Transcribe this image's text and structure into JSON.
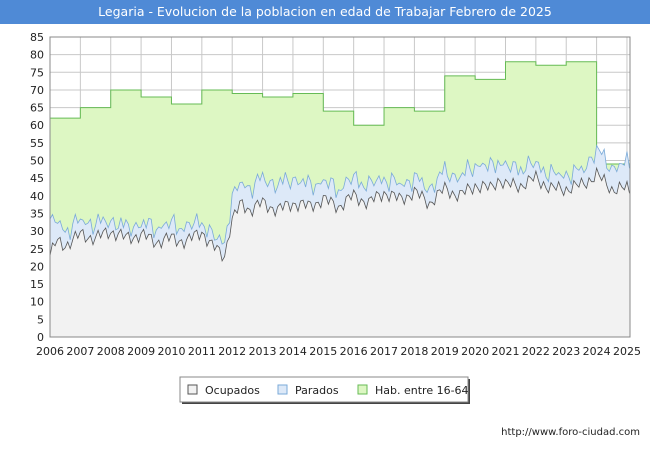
{
  "chart_data": {
    "type": "area",
    "title": "Legaria - Evolucion de la poblacion en edad de Trabajar Febrero de 2025",
    "xlabel": "",
    "ylabel": "",
    "ylim": [
      0,
      85
    ],
    "xlim": [
      2006,
      2025.1
    ],
    "x_ticks": [
      "2006",
      "2007",
      "2008",
      "2009",
      "2010",
      "2011",
      "2012",
      "2013",
      "2014",
      "2015",
      "2016",
      "2017",
      "2018",
      "2019",
      "2020",
      "2021",
      "2022",
      "2023",
      "2024",
      "2025"
    ],
    "y_ticks": [
      "0",
      "5",
      "10",
      "15",
      "20",
      "25",
      "30",
      "35",
      "40",
      "45",
      "50",
      "55",
      "60",
      "65",
      "70",
      "75",
      "80",
      "85"
    ],
    "legend": [
      "Ocupados",
      "Parados",
      "Hab. entre 16-64"
    ],
    "colors": {
      "ocupados_fill": "#f2f2f2",
      "ocupados_line": "#555555",
      "parados_fill": "#dde9f8",
      "parados_line": "#7aaad8",
      "hab_fill": "#ddf7c3",
      "hab_line": "#66bb55",
      "grid": "#c8c8c8",
      "title_bg": "#4f8ad6"
    },
    "series": [
      {
        "name": "Hab. entre 16-64",
        "x": [
          2006,
          2007,
          2008,
          2009,
          2010,
          2011,
          2012,
          2013,
          2014,
          2015,
          2016,
          2017,
          2018,
          2019,
          2020,
          2021,
          2022,
          2023,
          2024
        ],
        "values": [
          62,
          65,
          70,
          68,
          66,
          70,
          69,
          68,
          69,
          64,
          60,
          65,
          64,
          74,
          73,
          78,
          77,
          78,
          49
        ]
      },
      {
        "name": "Ocupados",
        "anchors": [
          [
            2006,
            23
          ],
          [
            2006.2,
            27
          ],
          [
            2006.5,
            26
          ],
          [
            2007,
            29
          ],
          [
            2007.5,
            28
          ],
          [
            2008,
            30
          ],
          [
            2008.5,
            28
          ],
          [
            2009,
            29
          ],
          [
            2009.5,
            27
          ],
          [
            2010,
            28
          ],
          [
            2010.5,
            27
          ],
          [
            2011,
            30
          ],
          [
            2011.3,
            26
          ],
          [
            2011.6,
            24
          ],
          [
            2011.75,
            23
          ],
          [
            2011.9,
            30
          ],
          [
            2012,
            33
          ],
          [
            2012.3,
            38
          ],
          [
            2012.6,
            36
          ],
          [
            2013,
            38
          ],
          [
            2013.5,
            36
          ],
          [
            2014,
            38
          ],
          [
            2014.5,
            37
          ],
          [
            2015,
            39
          ],
          [
            2015.5,
            37
          ],
          [
            2016,
            40
          ],
          [
            2016.5,
            38
          ],
          [
            2017,
            41
          ],
          [
            2017.5,
            39
          ],
          [
            2018,
            41
          ],
          [
            2018.5,
            38
          ],
          [
            2019,
            42
          ],
          [
            2019.5,
            40
          ],
          [
            2020,
            43
          ],
          [
            2020.5,
            42
          ],
          [
            2020.8,
            45
          ],
          [
            2021,
            43
          ],
          [
            2021.5,
            43
          ],
          [
            2022,
            45
          ],
          [
            2022.5,
            42
          ],
          [
            2023,
            42
          ],
          [
            2023.5,
            43
          ],
          [
            2024,
            46
          ],
          [
            2024.5,
            42
          ],
          [
            2025,
            42
          ],
          [
            2025.1,
            41
          ]
        ]
      },
      {
        "name": "Parados",
        "anchors": [
          [
            2006,
            9
          ],
          [
            2006.3,
            5
          ],
          [
            2006.6,
            4
          ],
          [
            2007,
            4
          ],
          [
            2007.5,
            4
          ],
          [
            2008,
            3
          ],
          [
            2008.5,
            3
          ],
          [
            2009,
            3
          ],
          [
            2009.5,
            4
          ],
          [
            2010,
            4
          ],
          [
            2010.5,
            4
          ],
          [
            2011,
            3
          ],
          [
            2011.5,
            3
          ],
          [
            2011.75,
            4
          ],
          [
            2012,
            6
          ],
          [
            2012.5,
            6
          ],
          [
            2013,
            7
          ],
          [
            2013.5,
            7
          ],
          [
            2014,
            7
          ],
          [
            2014.5,
            6
          ],
          [
            2015,
            5
          ],
          [
            2015.5,
            5
          ],
          [
            2016,
            5
          ],
          [
            2016.5,
            5
          ],
          [
            2017,
            4
          ],
          [
            2017.5,
            4
          ],
          [
            2018,
            4
          ],
          [
            2018.5,
            4
          ],
          [
            2019,
            5
          ],
          [
            2019.5,
            5
          ],
          [
            2020,
            6
          ],
          [
            2020.5,
            6
          ],
          [
            2021,
            5
          ],
          [
            2021.5,
            5
          ],
          [
            2022,
            4
          ],
          [
            2022.5,
            4
          ],
          [
            2023,
            4
          ],
          [
            2023.5,
            4
          ],
          [
            2024,
            7
          ],
          [
            2024.5,
            6
          ],
          [
            2025,
            7
          ],
          [
            2025.1,
            8
          ]
        ]
      }
    ]
  },
  "legend_labels": [
    "Ocupados",
    "Parados",
    "Hab. entre 16-64"
  ],
  "source_url": "http://www.foro-ciudad.com"
}
